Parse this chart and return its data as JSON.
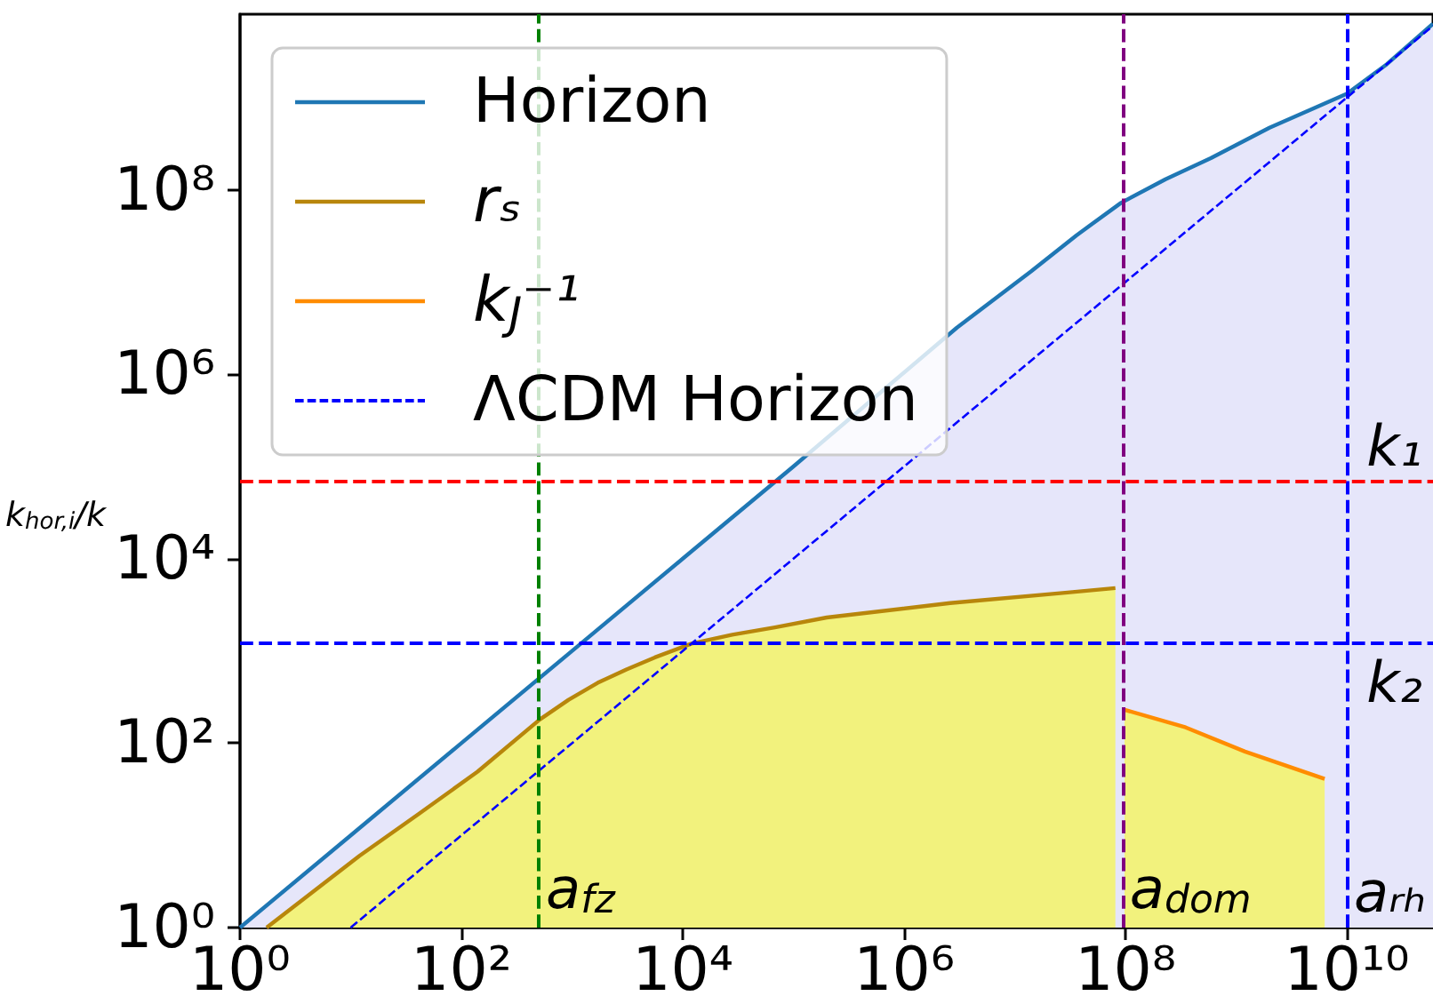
{
  "chart_data": {
    "type": "line",
    "ylabel": "k$_{hor,i}$/k",
    "log": "xy",
    "xlim": [
      1,
      60000000000.0
    ],
    "ylim": [
      1,
      8000000000.0
    ],
    "xticks": [
      {
        "value": 1,
        "label": "10⁰"
      },
      {
        "value": 100,
        "label": "10²"
      },
      {
        "value": 10000,
        "label": "10⁴"
      },
      {
        "value": 1000000,
        "label": "10⁶"
      },
      {
        "value": 100000000,
        "label": "10⁸"
      },
      {
        "value": 10000000000,
        "label": "10¹⁰"
      }
    ],
    "yticks": [
      {
        "value": 1,
        "label": "10⁰"
      },
      {
        "value": 100,
        "label": "10²"
      },
      {
        "value": 10000,
        "label": "10⁴"
      },
      {
        "value": 1000000,
        "label": "10⁶"
      },
      {
        "value": 100000000,
        "label": "10⁸"
      }
    ],
    "legend": "top left",
    "marker": "none",
    "series": [
      {
        "type": "area",
        "name": "Horizon",
        "color": "#1f77b4",
        "colors": [
          "#e6e6fa",
          "#e6e6fa",
          "#e6e6fa",
          "#e6e6fa",
          "#e6e6fa",
          "#e6e6fa",
          "#e6e6fa",
          "#e6e6fa",
          "#e6e6fa",
          "#e6e6fa",
          "#e6e6fa",
          "#e6e6fa",
          "#e6e6fa",
          "#e6e6fa",
          "#e6e6fa",
          "#e6e6fa",
          "#e6e6fa"
        ],
        "x": [
          1,
          10,
          100,
          1000,
          10000,
          100000,
          3000000,
          14000000,
          36000000,
          91000000,
          230000000,
          590000000,
          2000000000,
          4500000000,
          10000000000,
          23000000000,
          60000000000
        ],
        "values": [
          1,
          10,
          100,
          1000,
          10000,
          100000,
          3200000,
          13000000,
          32000000,
          72000000,
          130000000,
          220000000,
          470000000,
          720000000,
          1100000000,
          2300000000,
          6300000000
        ]
      },
      {
        "type": "area",
        "name": "rₛ",
        "color": "#b8860b",
        "colors": [
          "#f2f27d",
          "#f2f27d",
          "#f2f27d",
          "#f2f27d",
          "#f2f27d",
          "#f2f27d",
          "#f2f27d",
          "#f2f27d",
          "#f2f27d",
          "#f2f27d",
          "#f2f27d",
          "#f2f27d",
          "#f2f27d",
          "#f2f27d",
          "#f2f27d",
          "#f2f27d"
        ],
        "x": [
          1.74,
          12,
          41,
          140,
          510,
          930,
          1700,
          3100,
          5600,
          12000,
          28000,
          68000,
          200000,
          2600000,
          30000000,
          81000000
        ],
        "values": [
          1,
          6,
          17,
          49,
          180,
          295,
          450,
          630,
          850,
          1200,
          1500,
          1800,
          2300,
          3300,
          4300,
          4800
        ]
      },
      {
        "type": "area",
        "name": "k$_{J}$⁻¹",
        "color": "#ff8c00",
        "colors": [
          "#f2f27d",
          "#f2f27d",
          "#f2f27d",
          "#f2f27d"
        ],
        "x": [
          98000000,
          350000000,
          1200000000,
          6300000000
        ],
        "values": [
          230,
          148,
          81,
          41
        ]
      },
      {
        "name": "ΛCDM Horizon",
        "color": "#0000ff",
        "line_style": "dashed",
        "x": [
          10,
          100000,
          60000000000
        ],
        "values": [
          1,
          10000,
          6000000000
        ]
      }
    ],
    "ref_lines": [
      {
        "axis": "x",
        "value": 500,
        "label": "a$_{fz}$",
        "color": "#008000",
        "line_style": "dashed"
      },
      {
        "axis": "x",
        "value": 94000000,
        "label": "a$_{dom}$",
        "color": "#800080",
        "line_style": "dashed"
      },
      {
        "axis": "x",
        "value": 10000000000,
        "label": "aᵣₕ",
        "color": "#0000ff",
        "line_style": "dashed"
      },
      {
        "axis": "y",
        "value": 68000,
        "label": "k₁",
        "color": "#ff0000",
        "line_style": "dashed"
      },
      {
        "axis": "y",
        "value": 1200,
        "label": "k₂",
        "color": "#0000ff",
        "line_style": "dashed"
      }
    ]
  }
}
